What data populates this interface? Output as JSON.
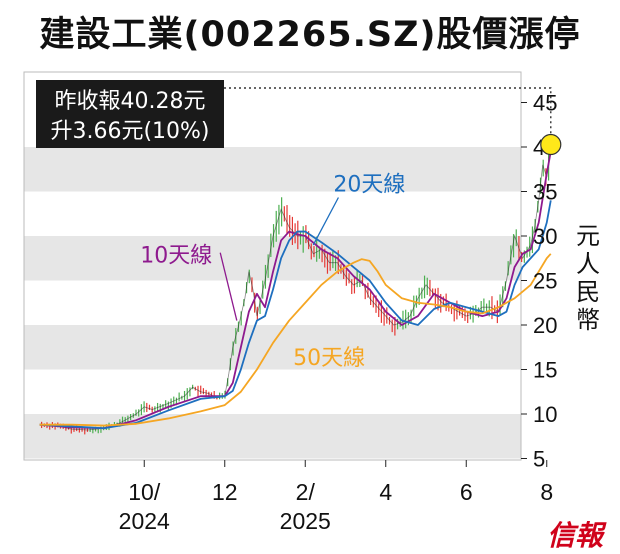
{
  "title": "建設工業(002265.SZ)股價漲停",
  "annotation": {
    "line1": "昨收報40.28元",
    "line2": "升3.66元(10%)"
  },
  "logo": "信報",
  "colors": {
    "background": "#ffffff",
    "band_gray": "#e6e6e6",
    "up_candle": "#4caf50",
    "down_candle": "#e53935",
    "price_line": "#222222",
    "ma10": "#8e1a8e",
    "ma20": "#1e6fbf",
    "ma50": "#f5a623",
    "highlight_dot": "#ffe81a",
    "annotation_bg": "#1a1a1a",
    "annotation_text": "#ffffff"
  },
  "chart_data": {
    "type": "line",
    "ylabel": "元人民幣",
    "ylim": [
      4,
      48
    ],
    "yticks": [
      5,
      10,
      15,
      20,
      25,
      30,
      35,
      40,
      45
    ],
    "grid": "alternating-horizontal-bands",
    "xticks": [
      {
        "label": "10/",
        "sub": "2024",
        "x": 1.0
      },
      {
        "label": "12",
        "x": 3.0
      },
      {
        "label": "2/",
        "sub": "2025",
        "x": 5.0
      },
      {
        "label": "4",
        "x": 7.0
      },
      {
        "label": "6",
        "x": 9.0
      },
      {
        "label": "8",
        "x": 11.0
      }
    ],
    "xlim": [
      -1.6,
      11.5
    ],
    "price": {
      "x": [
        -1.6,
        -1.2,
        -0.8,
        -0.4,
        0.0,
        0.4,
        0.8,
        1.0,
        1.2,
        1.6,
        2.0,
        2.2,
        2.4,
        2.6,
        2.8,
        3.0,
        3.1,
        3.2,
        3.35,
        3.5,
        3.6,
        3.7,
        3.8,
        4.0,
        4.2,
        4.4,
        4.6,
        4.8,
        5.0,
        5.2,
        5.4,
        5.6,
        5.8,
        6.0,
        6.2,
        6.4,
        6.6,
        6.8,
        7.0,
        7.2,
        7.4,
        7.6,
        7.8,
        8.0,
        8.2,
        8.4,
        8.6,
        8.8,
        9.0,
        9.2,
        9.4,
        9.6,
        9.8,
        10.0,
        10.2,
        10.4,
        10.6,
        10.7,
        10.8,
        10.9,
        11.0,
        11.1
      ],
      "y": [
        8.8,
        8.7,
        8.3,
        8.2,
        8.4,
        9.0,
        10.0,
        10.8,
        10.5,
        11.2,
        12.0,
        13.0,
        12.5,
        12.3,
        11.8,
        12.0,
        14.5,
        17.5,
        20.0,
        23.0,
        26.0,
        24.0,
        21.0,
        25.0,
        30.0,
        33.0,
        31.0,
        30.0,
        30.0,
        28.0,
        28.5,
        27.0,
        27.0,
        25.5,
        24.5,
        25.0,
        23.0,
        22.0,
        21.0,
        20.0,
        20.3,
        21.0,
        23.0,
        24.5,
        23.5,
        22.5,
        22.0,
        21.5,
        21.0,
        21.3,
        22.0,
        22.0,
        21.5,
        25.0,
        30.0,
        27.5,
        29.0,
        31.0,
        34.0,
        38.0,
        36.62,
        40.28
      ]
    },
    "series": [
      {
        "name": "10天線",
        "x": [
          -1.6,
          -0.8,
          0.0,
          0.8,
          1.6,
          2.4,
          3.0,
          3.2,
          3.4,
          3.6,
          3.8,
          4.0,
          4.2,
          4.4,
          4.6,
          4.8,
          5.0,
          5.4,
          5.8,
          6.2,
          6.6,
          7.0,
          7.4,
          7.8,
          8.2,
          8.6,
          9.0,
          9.4,
          9.8,
          10.0,
          10.2,
          10.4,
          10.6,
          10.8,
          11.0,
          11.1
        ],
        "y": [
          8.8,
          8.5,
          8.4,
          9.3,
          10.8,
          12.0,
          12.0,
          13.5,
          17.5,
          21.5,
          23.5,
          22.0,
          26.0,
          29.5,
          30.5,
          30.2,
          30.0,
          28.5,
          27.5,
          25.5,
          24.0,
          21.5,
          20.0,
          21.0,
          23.5,
          22.5,
          21.5,
          21.0,
          21.5,
          23.0,
          26.5,
          28.0,
          28.5,
          31.5,
          37.0,
          39.5
        ]
      },
      {
        "name": "20天線",
        "x": [
          -1.6,
          -0.8,
          0.0,
          0.8,
          1.6,
          2.4,
          3.0,
          3.2,
          3.4,
          3.6,
          3.8,
          4.0,
          4.2,
          4.4,
          4.6,
          4.8,
          5.0,
          5.4,
          5.8,
          6.2,
          6.6,
          7.0,
          7.4,
          7.8,
          8.2,
          8.6,
          9.0,
          9.4,
          9.8,
          10.0,
          10.2,
          10.4,
          10.6,
          10.8,
          11.0,
          11.1
        ],
        "y": [
          8.8,
          8.6,
          8.4,
          9.0,
          10.4,
          11.7,
          12.0,
          12.6,
          15.0,
          18.0,
          20.5,
          21.0,
          24.0,
          27.5,
          29.5,
          30.5,
          30.5,
          29.3,
          28.0,
          26.5,
          25.0,
          22.5,
          20.5,
          20.0,
          21.8,
          22.5,
          22.0,
          21.5,
          21.0,
          21.5,
          24.5,
          26.5,
          27.5,
          28.5,
          31.5,
          34.0
        ]
      },
      {
        "name": "50天線",
        "x": [
          -1.6,
          -0.8,
          0.0,
          0.8,
          1.6,
          2.4,
          3.0,
          3.4,
          3.8,
          4.2,
          4.6,
          5.0,
          5.4,
          5.8,
          6.2,
          6.4,
          6.6,
          6.8,
          7.0,
          7.4,
          7.8,
          8.2,
          8.6,
          9.0,
          9.4,
          9.8,
          10.2,
          10.6,
          11.0,
          11.1
        ],
        "y": [
          8.8,
          8.8,
          8.7,
          8.9,
          9.5,
          10.3,
          11.0,
          12.5,
          15.0,
          18.0,
          20.5,
          22.5,
          24.5,
          26.0,
          27.0,
          27.4,
          27.2,
          26.0,
          24.5,
          23.0,
          22.5,
          22.3,
          22.0,
          21.5,
          21.3,
          22.0,
          23.0,
          24.5,
          27.5,
          28.0
        ]
      }
    ],
    "labels": [
      {
        "text": "10天線",
        "series": "10天線",
        "at": [
          0.9,
          27.0
        ],
        "pointer_to": [
          3.3,
          20.5
        ]
      },
      {
        "text": "20天線",
        "series": "20天線",
        "at": [
          5.7,
          35.0
        ],
        "pointer_to": [
          5.2,
          29.0
        ]
      },
      {
        "text": "50天線",
        "series": "50天線",
        "at": [
          4.7,
          15.5
        ]
      }
    ],
    "highlight": {
      "x": 11.1,
      "y": 40.28
    }
  }
}
